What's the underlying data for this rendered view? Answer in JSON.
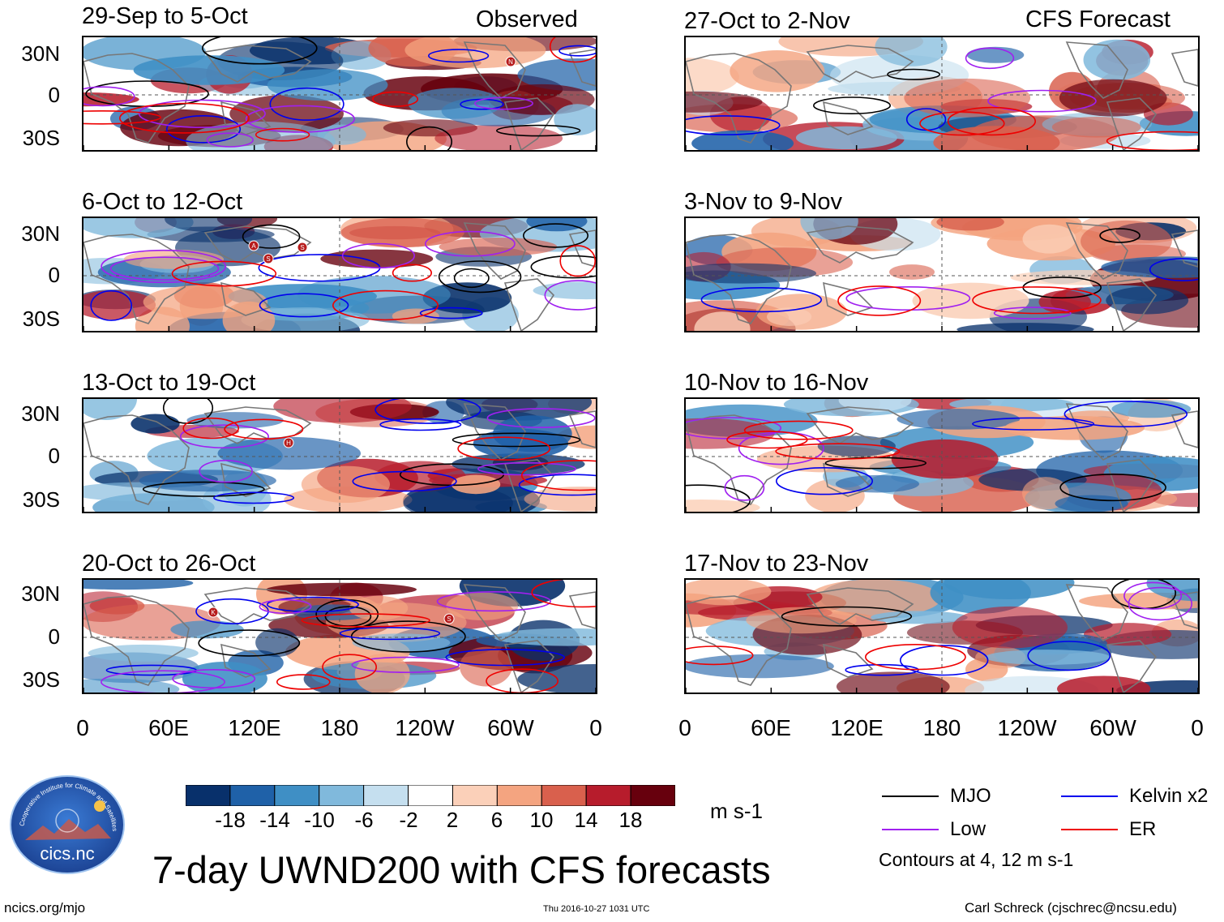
{
  "header": {
    "observed_label": "Observed",
    "forecast_label": "CFS Forecast"
  },
  "panels": {
    "observed": [
      {
        "title": "29-Sep to 5-Oct"
      },
      {
        "title": "6-Oct to 12-Oct"
      },
      {
        "title": "13-Oct to 19-Oct"
      },
      {
        "title": "20-Oct to 26-Oct"
      }
    ],
    "forecast": [
      {
        "title": "27-Oct to 2-Nov"
      },
      {
        "title": "3-Nov to 9-Nov"
      },
      {
        "title": "10-Nov to 16-Nov"
      },
      {
        "title": "17-Nov to 23-Nov"
      }
    ]
  },
  "axes": {
    "lat_labels": [
      "30N",
      "0",
      "30S"
    ],
    "lon_labels": [
      "0",
      "60E",
      "120E",
      "180",
      "120W",
      "60W",
      "0"
    ]
  },
  "storm_markers": [
    {
      "panel": 0,
      "letter": "N"
    },
    {
      "panel": 1,
      "letter": "A"
    },
    {
      "panel": 1,
      "letter": "S"
    },
    {
      "panel": 1,
      "letter": "S"
    },
    {
      "panel": 2,
      "letter": "H"
    },
    {
      "panel": 3,
      "letter": "K"
    },
    {
      "panel": 3,
      "letter": "S"
    }
  ],
  "colorbar": {
    "labels": [
      "-18",
      "-14",
      "-10",
      "-6",
      "-2",
      "2",
      "6",
      "10",
      "14",
      "18"
    ],
    "units": "m s-1",
    "colors": [
      "#08306b",
      "#1f61a8",
      "#3f8fc5",
      "#80b9dc",
      "#c5dfef",
      "#ffffff",
      "#fbd0b9",
      "#f4a480",
      "#d9604d",
      "#b71c2c",
      "#67000d"
    ]
  },
  "title": "7-day UWND200 with CFS forecasts",
  "legend": {
    "items": [
      {
        "label": "MJO",
        "color": "#000000"
      },
      {
        "label": "Kelvin x2",
        "color": "#0000ee"
      },
      {
        "label": "Low",
        "color": "#a020f0"
      },
      {
        "label": "ER",
        "color": "#ee0000"
      }
    ],
    "note": "Contours at 4, 12 m s-1"
  },
  "logo": {
    "arc_text": "Cooperative Institute for Climate and Satellites",
    "name": "cics.nc"
  },
  "footer": {
    "left": "ncics.org/mjo",
    "center": "Thu 2016-10-27 1031 UTC",
    "right": "Carl Schreck (cjschrec@ncsu.edu)"
  }
}
